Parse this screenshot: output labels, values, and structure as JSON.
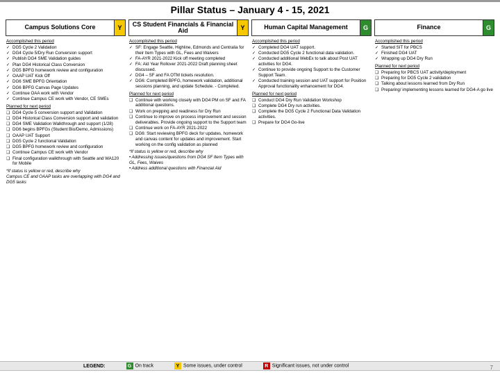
{
  "title": "Pillar Status – January 4 - 15, 2021",
  "page_number": "7",
  "legend": {
    "label": "LEGEND:",
    "items": [
      {
        "code": "G",
        "text": "On track",
        "color": "#2e8b2e"
      },
      {
        "code": "Y",
        "text": "Some issues, under control",
        "color": "#f6c800"
      },
      {
        "code": "R",
        "text": "Significant issues, not under control",
        "color": "#c00000"
      }
    ]
  },
  "columns": [
    {
      "header": "Campus Solutions Core",
      "status": "Y",
      "sections": [
        {
          "label": "Accomplished this period",
          "bullet": "✓",
          "items": [
            "DG5 Cycle 2 Validation",
            "DG4 Cycle 5/Dry Run Conversion support",
            "Publish DG4 SME Validation guides",
            "Plan DG4 Historical Class Conversion",
            "DG5 BPFG homework review and configuration",
            "OAAP UAT Kick Off",
            "DG6 SME BPFG Orientation",
            "DG6 BPFG Canvas Page Updates",
            "Continue OAA work with Vendor",
            "Continue Campus CE work with Vendor, CE SMEs"
          ]
        },
        {
          "label": "Planned for next period",
          "bullet": "❑",
          "items": [
            "DG4 Cycle 5 conversion support and Validation",
            "DG4 Historical Class Conversion support and validation",
            "DG4 SME Validation Walkthrough and support (1/28)",
            "DG6 begins BPFGs (Student Bio/Demo, Admissions)",
            "OAAP UAT Support",
            "DG5 Cycle 2 functional Validation",
            "DG5 BPFG homework review and configuration",
            "Continue Campus CE work with Vendor",
            "Final configuration walkthrough with Seattle and WA120 for Mobile"
          ]
        }
      ],
      "note": "*If status is yellow or red, describe why\nCampus CE and OAAP tasks are overlapping with DG4 and DG5 tasks"
    },
    {
      "header": "CS Student Financials & Financial Aid",
      "status": "Y",
      "sections": [
        {
          "label": "Accomplished this period",
          "bullet": "✓",
          "items": [
            "SF: Engage Seattle, Highline, Edmonds and Centralia for their Item Types with GL, Fees and Waivers",
            "FA-AYR 2021-2022 Kick off meeting completed",
            "FA: Aid Year Rollover 2021-2022 Draft planning sheet discussed.",
            "DG4 – SF and FA OTM tickets resolution.",
            "DG6: Completed BPFG, homework validation, additional sessions planning, and update Schedule. - Completed."
          ]
        },
        {
          "label": "Planned for next period",
          "bullet": "❑",
          "items": [
            "Continue with working closely with DG4 PM on SF and FA additional questions.",
            "Work on prepping and readiness for Dry Run",
            "Continue to improve on process improvement and session deliverables. Provide ongoing support to the Support team",
            "Continue work on FA-AYR 2021-2022",
            "DG6: Start reviewing BPFG deck for updates, homework and canvas content for updates and improvement. Start working on the config validation as planned"
          ]
        }
      ],
      "note": "*If status is yellow or red, describe why\n• Addressing issues/questions from DG4 SF Item Types with GL, Fees, Waives\n• Address additional questions with Financial Aid"
    },
    {
      "header": "Human Capital Management",
      "status": "G",
      "sections": [
        {
          "label": "Accomplished this period",
          "bullet": "✓",
          "items": [
            "Completed DG4 UAT support.",
            "Conducted DG5 Cycle 2 functional data validation.",
            "Conducted additional WebEx to talk about Post UAT activities for DG4.",
            "Continue to provide ongoing Support to the Customer Support Team.",
            "Conducted training session and UAT support for Position Approval functionality enhancement for DG4."
          ]
        },
        {
          "label": "Planned for next period",
          "bullet": "❑",
          "items": [
            "Conduct DG4 Dry Run Validation Workshop",
            "Complete DG4 Dry run activities.",
            "Complete the DG5 Cycle 2 Functional Data Validation activities.",
            "Prepare for DG4 Go-live"
          ]
        }
      ],
      "note": ""
    },
    {
      "header": "Finance",
      "status": "G",
      "sections": [
        {
          "label": "Accomplished this period",
          "bullet": "✓",
          "items": [
            "Started SIT for PBCS",
            "Finished DG4 UAT",
            "Wrapping up DG4 Dry Run"
          ]
        },
        {
          "label": "Planned for next period",
          "bullet": "❑",
          "items": [
            "Preparing for PBCS UAT activity/deployment",
            "Preparing for DG5 Cycle 2 validation",
            "Talking about lessons learned from Dry Run",
            "Preparing/ implementing lessons learned for DG4-A go live"
          ]
        }
      ],
      "note": ""
    }
  ]
}
